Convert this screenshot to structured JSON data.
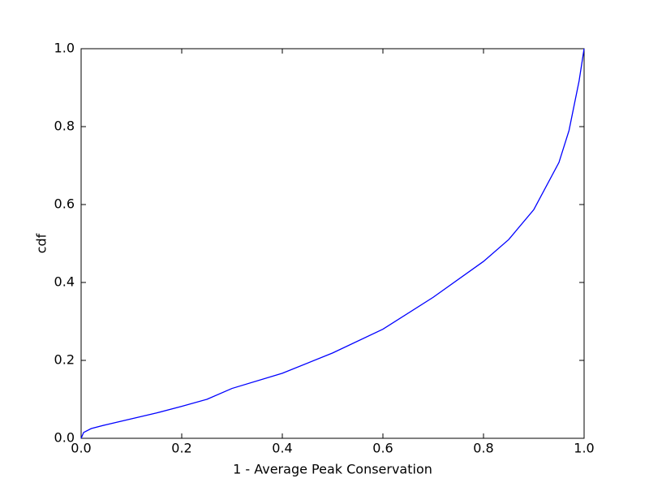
{
  "chart_data": {
    "type": "line",
    "x_label": "1 - Average Peak Conservation",
    "y_label": "cdf",
    "x": [
      0,
      0.005,
      0.02,
      0.05,
      0.1,
      0.15,
      0.2,
      0.25,
      0.3,
      0.4,
      0.5,
      0.6,
      0.7,
      0.8,
      0.85,
      0.9,
      0.95,
      0.97,
      0.99,
      1.0
    ],
    "series": [
      {
        "color": "#0000ff",
        "values": [
          0,
          0.015,
          0.025,
          0.035,
          0.05,
          0.065,
          0.082,
          0.1,
          0.128,
          0.167,
          0.219,
          0.28,
          0.362,
          0.454,
          0.51,
          0.587,
          0.708,
          0.79,
          0.917,
          1.0
        ]
      }
    ],
    "xlim": [
      0,
      1
    ],
    "ylim": [
      0,
      1
    ],
    "xticks": [
      {
        "value": 0,
        "label": "0.0"
      },
      0.2,
      0.4,
      0.6,
      0.8,
      {
        "value": 1,
        "label": "1.0"
      }
    ],
    "yticks": [
      {
        "value": 0,
        "label": "0.0"
      },
      0.2,
      0.4,
      0.6,
      0.8,
      {
        "value": 1,
        "label": "1.0"
      }
    ],
    "grid": false
  }
}
